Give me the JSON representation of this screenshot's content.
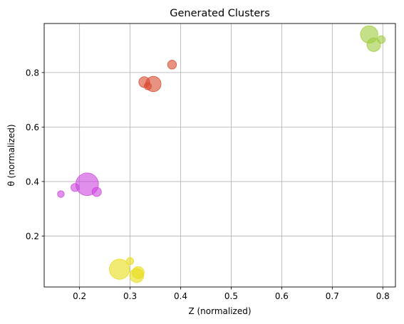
{
  "chart_data": {
    "type": "scatter",
    "title": "Generated Clusters",
    "xlabel": "Z (normalized)",
    "ylabel": "θ (normalized)",
    "xlim": [
      0.13,
      0.825
    ],
    "ylim": [
      0.013,
      0.98
    ],
    "grid": true,
    "xticks": [
      "0.2",
      "0.3",
      "0.4",
      "0.5",
      "0.6",
      "0.7",
      "0.8"
    ],
    "yticks": [
      "0.2",
      "0.4",
      "0.6",
      "0.8"
    ],
    "clusters": [
      {
        "color": "#e8dc16",
        "points": [
          {
            "x": 0.279,
            "y": 0.078,
            "size": 0.62
          },
          {
            "x": 0.313,
            "y": 0.055,
            "size": 0.3
          },
          {
            "x": 0.316,
            "y": 0.066,
            "size": 0.22
          },
          {
            "x": 0.3,
            "y": 0.108,
            "size": 0.08
          }
        ]
      },
      {
        "color": "#cc44dd",
        "points": [
          {
            "x": 0.215,
            "y": 0.39,
            "size": 0.78
          },
          {
            "x": 0.234,
            "y": 0.362,
            "size": 0.13
          },
          {
            "x": 0.191,
            "y": 0.378,
            "size": 0.1
          },
          {
            "x": 0.163,
            "y": 0.354,
            "size": 0.07
          }
        ]
      },
      {
        "color": "#d94a2e",
        "points": [
          {
            "x": 0.346,
            "y": 0.758,
            "size": 0.36
          },
          {
            "x": 0.328,
            "y": 0.765,
            "size": 0.18
          },
          {
            "x": 0.383,
            "y": 0.829,
            "size": 0.12
          },
          {
            "x": 0.335,
            "y": 0.75,
            "size": 0.08
          }
        ]
      },
      {
        "color": "#9ccc3c",
        "points": [
          {
            "x": 0.773,
            "y": 0.94,
            "size": 0.46
          },
          {
            "x": 0.782,
            "y": 0.902,
            "size": 0.28
          },
          {
            "x": 0.797,
            "y": 0.921,
            "size": 0.09
          }
        ]
      }
    ]
  }
}
